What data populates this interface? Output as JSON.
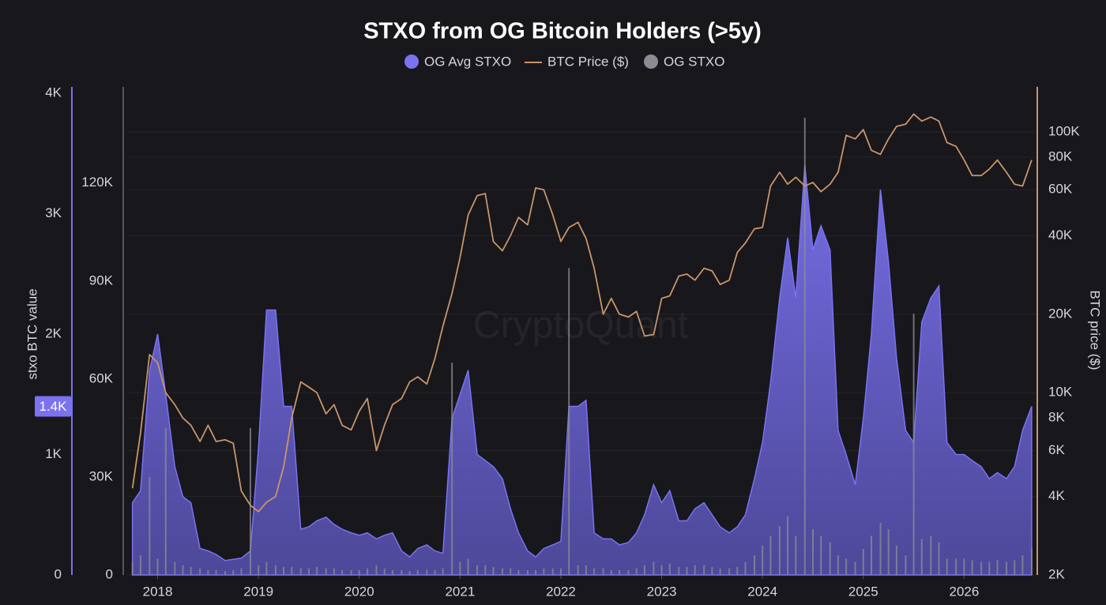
{
  "chart_data": {
    "type": "combo",
    "title": "STXO from OG Bitcoin Holders (>5y)",
    "watermark": "CryptoQuant",
    "x": [
      2017.75,
      2017.83,
      2017.92,
      2018,
      2018.08,
      2018.17,
      2018.25,
      2018.33,
      2018.42,
      2018.5,
      2018.58,
      2018.67,
      2018.75,
      2018.83,
      2018.92,
      2019,
      2019.08,
      2019.17,
      2019.25,
      2019.33,
      2019.42,
      2019.5,
      2019.58,
      2019.67,
      2019.75,
      2019.83,
      2019.92,
      2020,
      2020.08,
      2020.17,
      2020.25,
      2020.33,
      2020.42,
      2020.5,
      2020.58,
      2020.67,
      2020.75,
      2020.83,
      2020.92,
      2021,
      2021.08,
      2021.17,
      2021.25,
      2021.33,
      2021.42,
      2021.5,
      2021.58,
      2021.67,
      2021.75,
      2021.83,
      2021.92,
      2022,
      2022.08,
      2022.17,
      2022.25,
      2022.33,
      2022.42,
      2022.5,
      2022.58,
      2022.67,
      2022.75,
      2022.83,
      2022.92,
      2023,
      2023.08,
      2023.17,
      2023.25,
      2023.33,
      2023.42,
      2023.5,
      2023.58,
      2023.67,
      2023.75,
      2023.83,
      2023.92,
      2024,
      2024.08,
      2024.17,
      2024.25,
      2024.33,
      2024.42,
      2024.5,
      2024.58,
      2024.67,
      2024.75,
      2024.83,
      2024.92,
      2025,
      2025.08,
      2025.17,
      2025.25,
      2025.33,
      2025.42,
      2025.5,
      2025.58,
      2025.67,
      2025.75,
      2025.83,
      2025.92,
      2026,
      2026.08,
      2026.17,
      2026.25,
      2026.33,
      2026.42,
      2026.5,
      2026.58,
      2026.67
    ],
    "xlim": [
      2017.69,
      2026.71
    ],
    "xticks": [
      2018,
      2019,
      2020,
      2021,
      2022,
      2023,
      2024,
      2025,
      2026
    ],
    "y_label": "stxo BTC value",
    "ylim": [
      0,
      4000
    ],
    "yticks": [
      0,
      {
        "value": 1000,
        "label": "1K"
      },
      {
        "value": 2000,
        "label": "2K"
      },
      {
        "value": 3000,
        "label": "3K"
      },
      {
        "value": 4000,
        "label": "4K"
      }
    ],
    "current_value": {
      "value": 1400,
      "label": "1.4K"
    },
    "y2lim": [
      0,
      147500
    ],
    "y2ticks": [
      0,
      {
        "value": 30000,
        "label": "30K"
      },
      {
        "value": 60000,
        "label": "60K"
      },
      {
        "value": 90000,
        "label": "90K"
      },
      {
        "value": 120000,
        "label": "120K"
      }
    ],
    "y3_label": "BTC price ($)",
    "y3_log": true,
    "y3lim": [
      2000,
      140700
    ],
    "y3ticks": [
      {
        "value": 2000,
        "label": "2K"
      },
      {
        "value": 4000,
        "label": "4K"
      },
      {
        "value": 6000,
        "label": "6K"
      },
      {
        "value": 8000,
        "label": "8K"
      },
      {
        "value": 10000,
        "label": "10K"
      },
      {
        "value": 20000,
        "label": "20K"
      },
      {
        "value": 40000,
        "label": "40K"
      },
      {
        "value": 60000,
        "label": "60K"
      },
      {
        "value": 80000,
        "label": "80K"
      },
      {
        "value": 100000,
        "label": "100K"
      }
    ],
    "grid": true,
    "series": [
      {
        "name": "OG Avg STXO",
        "type": "area",
        "axis": "y",
        "color": "#7b72f0",
        "values": [
          600,
          700,
          1700,
          2000,
          1500,
          900,
          650,
          600,
          220,
          200,
          170,
          120,
          130,
          140,
          200,
          1050,
          2200,
          2200,
          1400,
          1400,
          380,
          400,
          450,
          480,
          420,
          380,
          350,
          330,
          350,
          300,
          330,
          350,
          200,
          150,
          220,
          250,
          200,
          180,
          1300,
          1500,
          1700,
          1000,
          950,
          900,
          800,
          550,
          350,
          200,
          150,
          220,
          250,
          280,
          1400,
          1400,
          1450,
          350,
          300,
          300,
          250,
          270,
          350,
          500,
          750,
          600,
          700,
          450,
          450,
          550,
          600,
          500,
          400,
          350,
          400,
          500,
          800,
          1100,
          1600,
          2300,
          2800,
          2300,
          3400,
          2700,
          2900,
          2700,
          1200,
          1000,
          750,
          1300,
          2000,
          3200,
          2600,
          1800,
          1200,
          1100,
          2100,
          2300,
          2400,
          1100,
          1000,
          1000,
          950,
          900,
          800,
          850,
          800,
          900,
          1200,
          1400
        ]
      },
      {
        "name": "BTC Price ($)",
        "type": "line",
        "axis": "y3",
        "color": "#c8956a",
        "values": [
          4300,
          7000,
          14000,
          13000,
          10000,
          9000,
          8000,
          7500,
          6500,
          7500,
          6500,
          6600,
          6400,
          4200,
          3700,
          3500,
          3800,
          4000,
          5200,
          8000,
          11000,
          10500,
          10000,
          8300,
          9000,
          7500,
          7200,
          8500,
          9500,
          6000,
          7500,
          9000,
          9500,
          11000,
          11500,
          10800,
          13500,
          18000,
          24000,
          33000,
          48000,
          57000,
          58000,
          38000,
          35000,
          40000,
          47000,
          44000,
          61000,
          60000,
          48000,
          38000,
          43000,
          45000,
          39000,
          30000,
          20000,
          23000,
          20000,
          19500,
          20500,
          16500,
          16700,
          23000,
          23500,
          28000,
          28500,
          27000,
          30000,
          29300,
          26000,
          27000,
          34500,
          37500,
          42500,
          43000,
          62000,
          70000,
          63000,
          67000,
          62000,
          64000,
          59000,
          63000,
          70000,
          97000,
          94000,
          102000,
          85000,
          82000,
          94000,
          105000,
          107000,
          117000,
          110000,
          114000,
          110000,
          91000,
          88000,
          78000,
          68000,
          68000,
          72000,
          78000,
          70000,
          63000,
          62000,
          78000
        ]
      },
      {
        "name": "OG STXO",
        "type": "bar",
        "axis": "y2",
        "color": "#8d8c96",
        "values": [
          4000,
          6000,
          30000,
          5000,
          45000,
          4000,
          3000,
          2500,
          2000,
          1500,
          1500,
          1200,
          1500,
          2000,
          45000,
          3000,
          4000,
          3000,
          2500,
          2500,
          2000,
          2000,
          2500,
          2000,
          2000,
          1500,
          1500,
          1500,
          2000,
          3000,
          2000,
          1500,
          1500,
          1200,
          1500,
          1500,
          1500,
          2000,
          65000,
          4000,
          5000,
          3000,
          3000,
          2500,
          2000,
          2000,
          1500,
          1500,
          1500,
          2000,
          2000,
          2000,
          94000,
          3000,
          3000,
          2000,
          2000,
          1500,
          1500,
          1500,
          2000,
          3000,
          4000,
          3000,
          3500,
          2500,
          2500,
          3000,
          3000,
          2500,
          2000,
          2000,
          2500,
          4000,
          6000,
          9000,
          12000,
          15000,
          18000,
          12000,
          140000,
          14000,
          12000,
          10000,
          6000,
          5000,
          4000,
          8000,
          12000,
          16000,
          14000,
          9000,
          6000,
          80000,
          11000,
          12000,
          10000,
          5000,
          5000,
          5000,
          4500,
          4000,
          4000,
          4500,
          4000,
          4500,
          6000,
          8000
        ]
      }
    ]
  }
}
